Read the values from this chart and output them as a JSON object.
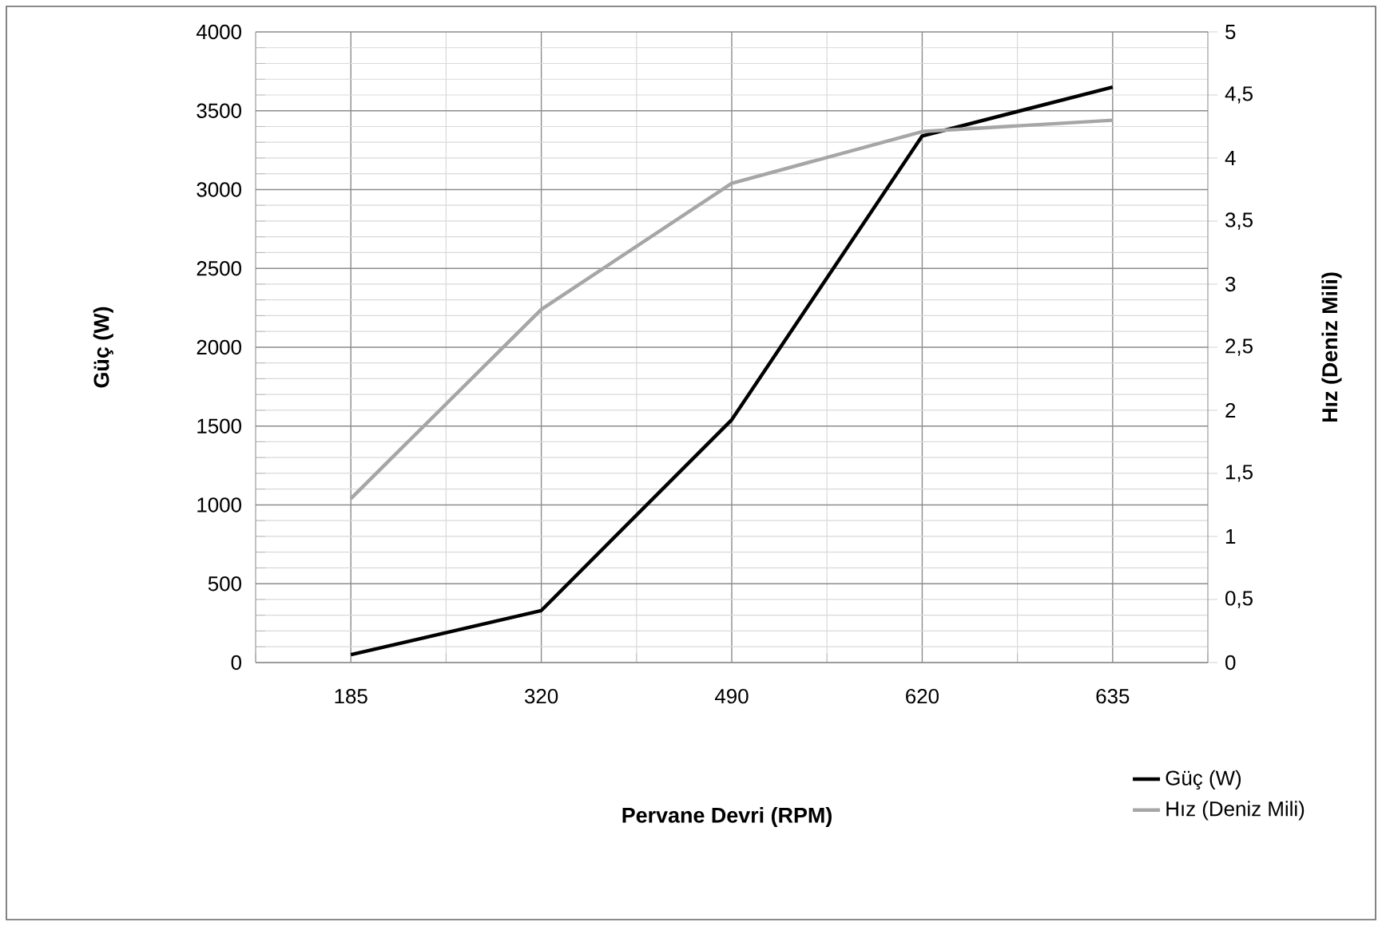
{
  "chart_data": {
    "type": "line",
    "xlabel": "Pervane Devri (RPM)",
    "ylabel": "Güç (W)",
    "y2label": "Hız (Deniz Mili)",
    "categories": [
      "185",
      "320",
      "490",
      "620",
      "635"
    ],
    "series": [
      {
        "name": "Güç (W)",
        "color": "#000000",
        "values": [
          50,
          330,
          1540,
          3340,
          3650
        ]
      },
      {
        "name": "Hız (Deniz Mili)",
        "color": "#a6a6a6",
        "values": [
          1.3,
          2.8,
          3.8,
          4.21,
          4.3
        ],
        "axis": "y2"
      }
    ],
    "ylim": [
      0,
      4000
    ],
    "yticks": [
      0,
      500,
      1000,
      1500,
      2000,
      2500,
      3000,
      3500,
      4000
    ],
    "y2lim": [
      0,
      5
    ],
    "y2ticks": [
      0,
      {
        "value": 0.5,
        "label": "0,5"
      },
      1,
      {
        "value": 1.5,
        "label": "1,5"
      },
      2,
      {
        "value": 2.5,
        "label": "2,5"
      },
      3,
      {
        "value": 3.5,
        "label": "3,5"
      },
      4,
      {
        "value": 4.5,
        "label": "4,5"
      },
      5
    ],
    "grid": true,
    "legend": "bottom right",
    "marker": "none",
    "line_style": "solid"
  }
}
